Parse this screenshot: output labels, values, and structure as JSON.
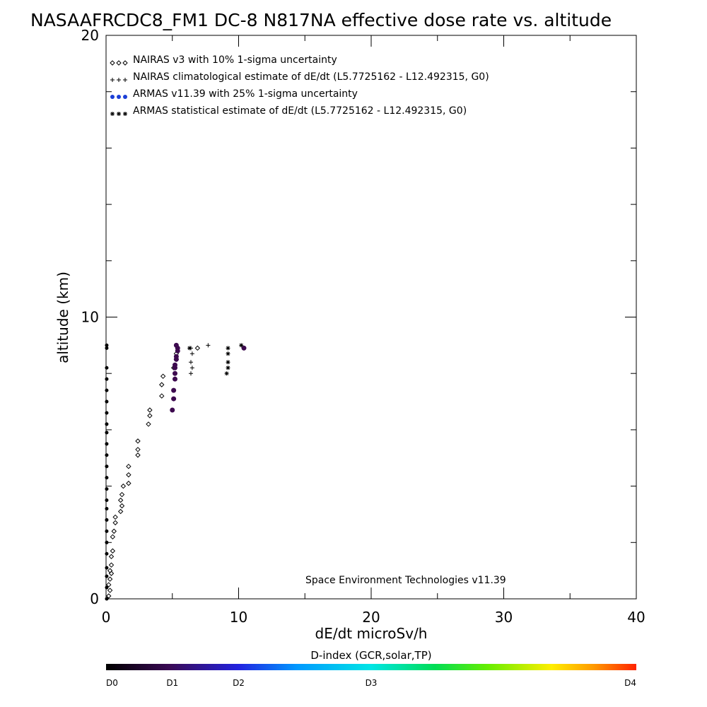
{
  "chart_data": {
    "type": "scatter",
    "title": "NASAAFRCDC8_FM1 DC-8   N817NA effective dose rate vs. altitude",
    "xlabel": "dE/dt microSv/h",
    "ylabel": "altitude (km)",
    "xlim": [
      0,
      40
    ],
    "ylim": [
      0,
      20
    ],
    "x_ticks": [
      "0",
      "10",
      "20",
      "30",
      "40"
    ],
    "y_ticks": [
      "0",
      "10",
      "20"
    ],
    "credit": "Space Environment Technologies v11.39",
    "legend_position": "top-left",
    "legend": [
      {
        "name": "NAIRAS v3 with 10% 1-sigma uncertainty",
        "marker": "diamond"
      },
      {
        "name": "NAIRAS climatological estimate of dE/dt (L5.7725162 - L12.492315, G0)",
        "marker": "plus"
      },
      {
        "name": "ARMAS v11.39 with 25% 1-sigma uncertainty",
        "marker": "dot",
        "color": "#1b3fd6"
      },
      {
        "name": "ARMAS statistical estimate of dE/dt (L5.7725162 - L12.492315, G0)",
        "marker": "asterisk"
      }
    ],
    "series": [
      {
        "name": "NAIRAS v3 with 10% 1-sigma uncertainty",
        "marker": "diamond",
        "points": [
          [
            0.2,
            0.1
          ],
          [
            0.3,
            0.3
          ],
          [
            0.2,
            0.5
          ],
          [
            0.3,
            0.7
          ],
          [
            0.4,
            0.9
          ],
          [
            0.3,
            1.0
          ],
          [
            0.4,
            1.2
          ],
          [
            0.4,
            1.5
          ],
          [
            0.5,
            1.7
          ],
          [
            0.5,
            2.2
          ],
          [
            0.6,
            2.4
          ],
          [
            0.7,
            2.7
          ],
          [
            0.7,
            2.9
          ],
          [
            1.1,
            3.1
          ],
          [
            1.2,
            3.3
          ],
          [
            1.1,
            3.5
          ],
          [
            1.2,
            3.7
          ],
          [
            1.3,
            4.0
          ],
          [
            1.7,
            4.1
          ],
          [
            1.7,
            4.4
          ],
          [
            1.7,
            4.7
          ],
          [
            2.4,
            5.1
          ],
          [
            2.4,
            5.3
          ],
          [
            2.4,
            5.6
          ],
          [
            3.2,
            6.2
          ],
          [
            3.3,
            6.5
          ],
          [
            3.3,
            6.7
          ],
          [
            4.2,
            7.2
          ],
          [
            4.2,
            7.6
          ],
          [
            4.3,
            7.9
          ],
          [
            5.1,
            8.2
          ],
          [
            5.3,
            8.5
          ],
          [
            5.3,
            8.7
          ],
          [
            6.9,
            8.9
          ]
        ]
      },
      {
        "name": "NAIRAS climatological estimate of dE/dt (L5.7725162 - L12.492315, G0)",
        "marker": "plus",
        "points": [
          [
            6.4,
            8.0
          ],
          [
            6.5,
            8.2
          ],
          [
            6.4,
            8.4
          ],
          [
            6.5,
            8.7
          ],
          [
            6.4,
            8.9
          ],
          [
            7.7,
            9.0
          ]
        ]
      },
      {
        "name": "ARMAS v11.39 with 25% 1-sigma uncertainty",
        "marker": "dot",
        "points": [
          [
            5.0,
            6.7
          ],
          [
            5.1,
            7.1
          ],
          [
            5.1,
            7.4
          ],
          [
            5.2,
            7.8
          ],
          [
            5.2,
            8.0
          ],
          [
            5.2,
            8.2
          ],
          [
            5.2,
            8.3
          ],
          [
            5.3,
            8.5
          ],
          [
            5.3,
            8.6
          ],
          [
            5.4,
            8.8
          ],
          [
            5.4,
            8.9
          ],
          [
            5.3,
            9.0
          ],
          [
            10.4,
            8.9
          ]
        ]
      },
      {
        "name": "ARMAS statistical estimate of dE/dt (L5.7725162 - L12.492315, G0)",
        "marker": "asterisk",
        "points": [
          [
            6.3,
            8.9
          ],
          [
            9.1,
            8.0
          ],
          [
            9.2,
            8.2
          ],
          [
            9.2,
            8.4
          ],
          [
            9.2,
            8.7
          ],
          [
            9.2,
            8.9
          ],
          [
            10.2,
            9.0
          ]
        ]
      },
      {
        "name": "near-zero dose rate column",
        "marker": "dot",
        "points": [
          [
            0.05,
            0.0
          ],
          [
            0.05,
            0.4
          ],
          [
            0.05,
            0.8
          ],
          [
            0.05,
            1.1
          ],
          [
            0.05,
            1.6
          ],
          [
            0.05,
            2.0
          ],
          [
            0.05,
            2.4
          ],
          [
            0.05,
            2.8
          ],
          [
            0.05,
            3.2
          ],
          [
            0.05,
            3.5
          ],
          [
            0.05,
            3.9
          ],
          [
            0.05,
            4.3
          ],
          [
            0.05,
            4.7
          ],
          [
            0.05,
            5.1
          ],
          [
            0.05,
            5.5
          ],
          [
            0.05,
            5.9
          ],
          [
            0.05,
            6.2
          ],
          [
            0.05,
            6.6
          ],
          [
            0.05,
            7.0
          ],
          [
            0.05,
            7.4
          ],
          [
            0.05,
            7.8
          ],
          [
            0.05,
            8.2
          ],
          [
            0.05,
            8.9
          ],
          [
            0.05,
            9.0
          ]
        ]
      }
    ],
    "colorbar": {
      "title": "D-index (GCR,solar,TP)",
      "labels": [
        {
          "text": "D0",
          "value": 0
        },
        {
          "text": "D1",
          "value": 1
        },
        {
          "text": "D2",
          "value": 2
        },
        {
          "text": "D3",
          "value": 4
        },
        {
          "text": "D4",
          "value": 8
        }
      ],
      "vmax": 8,
      "point_color": "#3d0a4f"
    }
  }
}
